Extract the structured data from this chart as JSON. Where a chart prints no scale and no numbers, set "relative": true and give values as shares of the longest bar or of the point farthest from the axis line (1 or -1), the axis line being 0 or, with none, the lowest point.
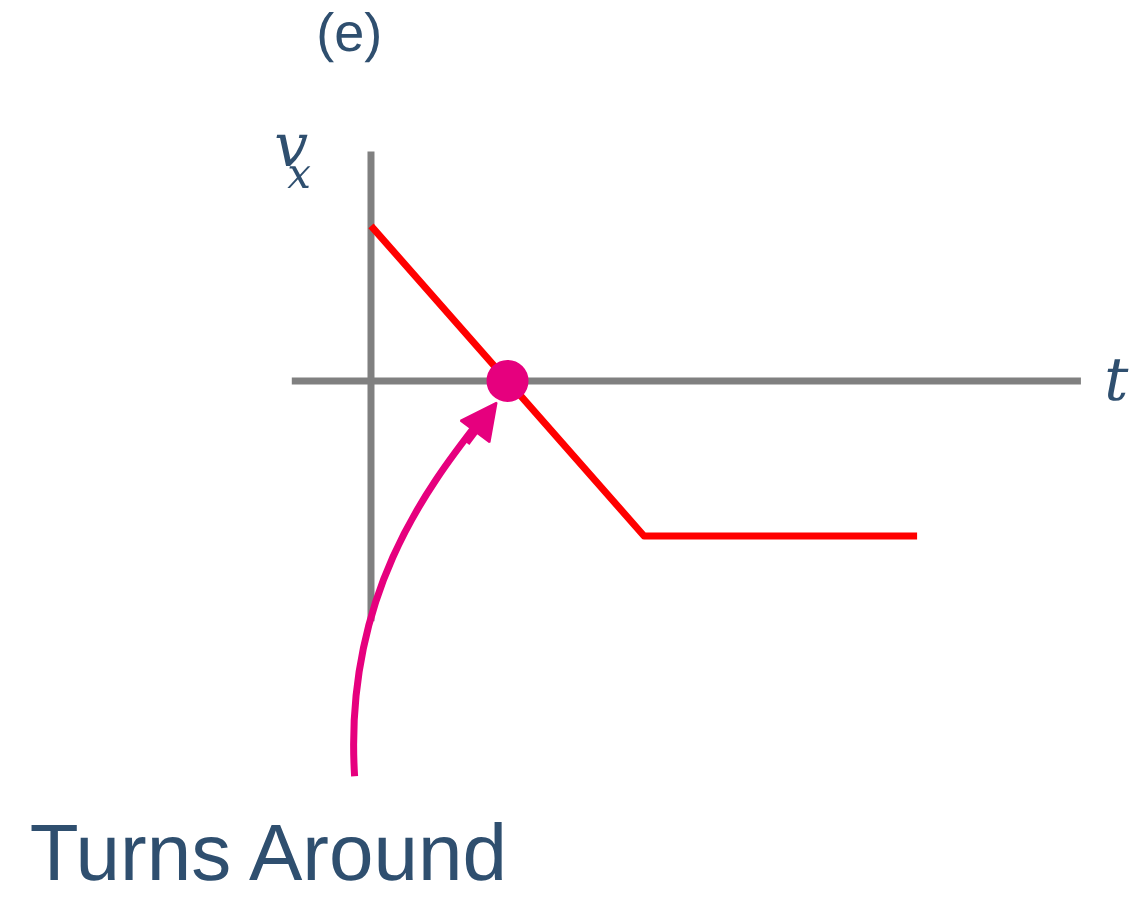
{
  "chart_data": {
    "type": "line",
    "title": "(e)",
    "xlabel": "t",
    "ylabel": "v$_{x}$",
    "relative": true,
    "categories": [
      null,
      null,
      null,
      null,
      null
    ],
    "series": [
      {
        "color": "#ff0000",
        "values": [
          1,
          0,
          -1,
          -1,
          -1
        ]
      }
    ],
    "annotations": [
      "Turns Around"
    ],
    "grid": false,
    "marker": "none",
    "line_style": "solid"
  }
}
